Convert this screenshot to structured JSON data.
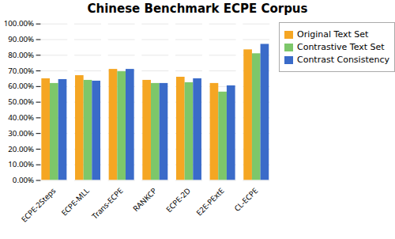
{
  "chart_data": {
    "type": "bar",
    "title": "Chinese Benchmark ECPE Corpus",
    "categories": [
      "ECPE-2Steps",
      "ECPE-MLL",
      "Trans-ECPE",
      "RANKCP",
      "ECPE-2D",
      "E2E-PExtE",
      "CL-ECPE"
    ],
    "series": [
      {
        "name": "Original Text Set",
        "color": "#F5A623",
        "values": [
          65.0,
          67.0,
          71.0,
          64.0,
          66.0,
          62.0,
          83.5
        ]
      },
      {
        "name": "Contrastive Text Set",
        "color": "#7DC76A",
        "values": [
          62.0,
          64.0,
          69.5,
          62.0,
          62.5,
          56.5,
          81.0
        ]
      },
      {
        "name": "Contrast Consistency",
        "color": "#3A6BC9",
        "values": [
          64.5,
          63.5,
          71.0,
          62.0,
          65.0,
          60.5,
          87.0
        ]
      }
    ],
    "ylim": [
      0,
      100
    ],
    "yticks": [
      {
        "value": 0,
        "label": "0.00%"
      },
      {
        "value": 10,
        "label": "10.00%"
      },
      {
        "value": 20,
        "label": "20.00%"
      },
      {
        "value": 30,
        "label": "30.00%"
      },
      {
        "value": 40,
        "label": "40.00%"
      },
      {
        "value": 50,
        "label": "50.00%"
      },
      {
        "value": 60,
        "label": "60.00%"
      },
      {
        "value": 70,
        "label": "70.00%"
      },
      {
        "value": 80,
        "label": "80.00%"
      },
      {
        "value": 90,
        "label": "90.00%"
      },
      {
        "value": 100,
        "label": "100.00%"
      }
    ],
    "grid": true,
    "legend": "right"
  }
}
